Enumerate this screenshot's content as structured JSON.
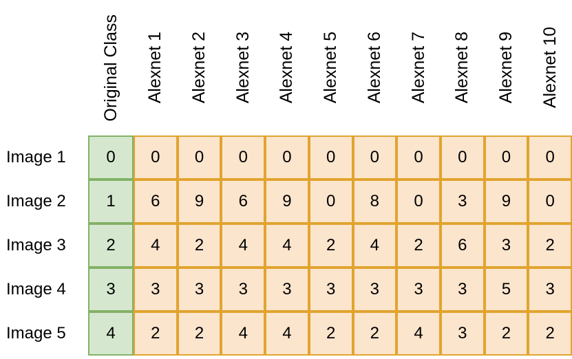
{
  "chart_data": {
    "type": "table",
    "title": "",
    "columns": [
      "Original Class",
      "Alexnet 1",
      "Alexnet 2",
      "Alexnet 3",
      "Alexnet 4",
      "Alexnet 5",
      "Alexnet 6",
      "Alexnet 7",
      "Alexnet 8",
      "Alexnet 9",
      "Alexnet 10"
    ],
    "rows": [
      {
        "label": "Image 1",
        "values": [
          0,
          0,
          0,
          0,
          0,
          0,
          0,
          0,
          0,
          0,
          0
        ]
      },
      {
        "label": "Image 2",
        "values": [
          1,
          6,
          9,
          6,
          9,
          0,
          8,
          0,
          3,
          9,
          0
        ]
      },
      {
        "label": "Image 3",
        "values": [
          2,
          4,
          2,
          4,
          4,
          2,
          4,
          2,
          6,
          3,
          2
        ]
      },
      {
        "label": "Image 4",
        "values": [
          3,
          3,
          3,
          3,
          3,
          3,
          3,
          3,
          3,
          5,
          3
        ]
      },
      {
        "label": "Image 5",
        "values": [
          4,
          2,
          2,
          4,
          4,
          2,
          2,
          4,
          3,
          2,
          2
        ]
      }
    ],
    "layout": {
      "header_text_rotation_degrees": -90,
      "grid_on": true
    }
  },
  "colors": {
    "original_class_fill": "#d5e8cf",
    "original_class_border": "#84b166",
    "prediction_fill": "#fce5cd",
    "prediction_border": "#e1a42f",
    "text": "#000000",
    "background": "#ffffff"
  }
}
